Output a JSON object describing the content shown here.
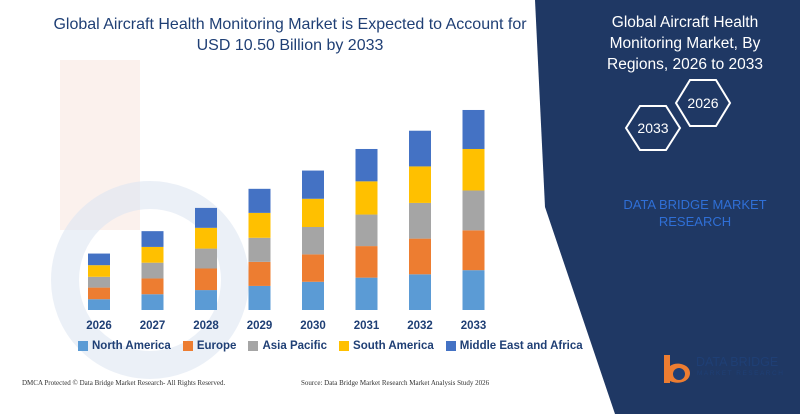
{
  "title": "Global Aircraft Health Monitoring Market is Expected to Account for USD 10.50 Billion by 2033",
  "panel": {
    "title": "Global Aircraft Health Monitoring Market, By Regions, 2026 to 2033",
    "hex_start": "2033",
    "hex_end": "2026",
    "subtitle": "DATA BRIDGE MARKET RESEARCH"
  },
  "footer": {
    "left": "DMCA Protected © Data Bridge Market Research- All Rights Reserved.",
    "right": "Source: Data Bridge Market Research Market Analysis Study 2026"
  },
  "logo": {
    "name": "DATA BRIDGE",
    "tagline": "MARKET RESEARCH"
  },
  "colors": {
    "panel_bg": "#1f3864",
    "north_america": "#5b9bd5",
    "europe": "#ed7d31",
    "asia_pacific": "#a5a5a5",
    "south_america": "#ffc000",
    "middle_east_africa": "#4472c4"
  },
  "chart_data": {
    "type": "bar",
    "stacked": true,
    "categories": [
      "2026",
      "2027",
      "2028",
      "2029",
      "2030",
      "2031",
      "2032",
      "2033"
    ],
    "series": [
      {
        "name": "North America",
        "color": "#5b9bd5",
        "values": [
          1.3,
          1.9,
          2.4,
          2.9,
          3.4,
          3.9,
          4.3,
          4.8
        ]
      },
      {
        "name": "Europe",
        "color": "#ed7d31",
        "values": [
          1.4,
          1.9,
          2.6,
          2.9,
          3.3,
          3.8,
          4.3,
          4.8
        ]
      },
      {
        "name": "Asia Pacific",
        "color": "#a5a5a5",
        "values": [
          1.3,
          1.9,
          2.4,
          2.9,
          3.3,
          3.8,
          4.3,
          4.8
        ]
      },
      {
        "name": "South America",
        "color": "#ffc000",
        "values": [
          1.4,
          1.9,
          2.5,
          3.0,
          3.4,
          4.0,
          4.4,
          5.0
        ]
      },
      {
        "name": "Middle East and Africa",
        "color": "#4472c4",
        "values": [
          1.4,
          1.9,
          2.4,
          2.9,
          3.4,
          3.9,
          4.3,
          4.7
        ]
      }
    ]
  }
}
